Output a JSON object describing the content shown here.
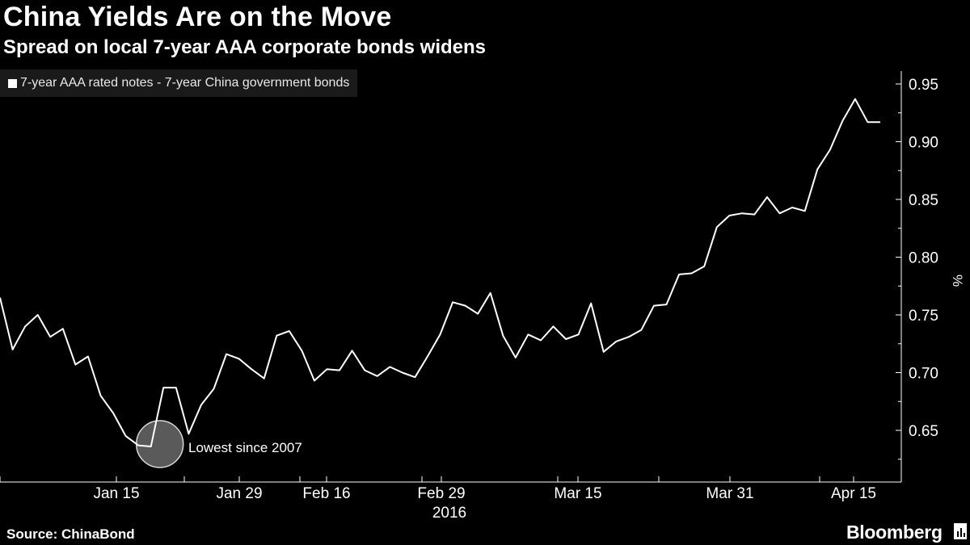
{
  "title": "China Yields Are on the Move",
  "subtitle": "Spread on local 7-year AAA corporate bonds widens",
  "source": "Source: ChinaBond",
  "brand": "Bloomberg",
  "chart_data": {
    "type": "line",
    "title": "China Yields Are on the Move",
    "subtitle": "Spread on local 7-year AAA corporate bonds widens",
    "ylabel": "%",
    "ylim": [
      0.62,
      0.96
    ],
    "yticks": [
      0.65,
      0.7,
      0.75,
      0.8,
      0.85,
      0.9,
      0.95
    ],
    "ytick_labels": [
      "0.65",
      "0.70",
      "0.75",
      "0.80",
      "0.85",
      "0.90",
      "0.95"
    ],
    "xlim": [
      "2016-01-04",
      "2016-04-20"
    ],
    "xticks": [
      {
        "date": "2016-01-15",
        "label": "Jan 15"
      },
      {
        "date": "2016-01-29",
        "label": "Jan 29"
      },
      {
        "date": "2016-02-16",
        "label": "Feb 16"
      },
      {
        "date": "2016-02-29",
        "label": "Feb 29"
      },
      {
        "date": "2016-03-15",
        "label": "Mar 15"
      },
      {
        "date": "2016-03-31",
        "label": "Mar 31"
      },
      {
        "date": "2016-04-15",
        "label": "Apr 15"
      }
    ],
    "year_label": "2016",
    "grid": false,
    "legend": "top-left",
    "series": [
      {
        "name": "7-year AAA rated notes - 7-year China government bonds",
        "color": "#ffffff",
        "points": [
          [
            "2016-01-04",
            0.765
          ],
          [
            "2016-01-05",
            0.72
          ],
          [
            "2016-01-06",
            0.74
          ],
          [
            "2016-01-07",
            0.75
          ],
          [
            "2016-01-08",
            0.731
          ],
          [
            "2016-01-09",
            0.738
          ],
          [
            "2016-01-10",
            0.707
          ],
          [
            "2016-01-11",
            0.714
          ],
          [
            "2016-01-12",
            0.68
          ],
          [
            "2016-01-13",
            0.665
          ],
          [
            "2016-01-14",
            0.645
          ],
          [
            "2016-01-15",
            0.637
          ],
          [
            "2016-01-16",
            0.636
          ],
          [
            "2016-01-17",
            0.687
          ],
          [
            "2016-01-18",
            0.687
          ],
          [
            "2016-01-19",
            0.647
          ],
          [
            "2016-01-20",
            0.672
          ],
          [
            "2016-01-21",
            0.686
          ],
          [
            "2016-01-22",
            0.716
          ],
          [
            "2016-01-23",
            0.712
          ],
          [
            "2016-01-24",
            0.703
          ],
          [
            "2016-01-25",
            0.695
          ],
          [
            "2016-01-26",
            0.732
          ],
          [
            "2016-01-27",
            0.736
          ],
          [
            "2016-01-28",
            0.719
          ],
          [
            "2016-01-29",
            0.693
          ],
          [
            "2016-02-01",
            0.703
          ],
          [
            "2016-02-04",
            0.702
          ],
          [
            "2016-02-07",
            0.719
          ],
          [
            "2016-02-10",
            0.702
          ],
          [
            "2016-02-13",
            0.697
          ],
          [
            "2016-02-16",
            0.705
          ],
          [
            "2016-02-19",
            0.7
          ],
          [
            "2016-02-22",
            0.696
          ],
          [
            "2016-02-25",
            0.714
          ],
          [
            "2016-02-29",
            0.733
          ],
          [
            "2016-03-02",
            0.761
          ],
          [
            "2016-03-04",
            0.758
          ],
          [
            "2016-03-05",
            0.751
          ],
          [
            "2016-03-06",
            0.769
          ],
          [
            "2016-03-07",
            0.732
          ],
          [
            "2016-03-08",
            0.713
          ],
          [
            "2016-03-09",
            0.733
          ],
          [
            "2016-03-10",
            0.728
          ],
          [
            "2016-03-11",
            0.74
          ],
          [
            "2016-03-12",
            0.729
          ],
          [
            "2016-03-13",
            0.733
          ],
          [
            "2016-03-14",
            0.76
          ],
          [
            "2016-03-15",
            0.718
          ],
          [
            "2016-03-16",
            0.727
          ],
          [
            "2016-03-17",
            0.731
          ],
          [
            "2016-03-18",
            0.737
          ],
          [
            "2016-03-19",
            0.758
          ],
          [
            "2016-03-20",
            0.759
          ],
          [
            "2016-03-21",
            0.785
          ],
          [
            "2016-03-22",
            0.786
          ],
          [
            "2016-03-23",
            0.792
          ],
          [
            "2016-03-24",
            0.826
          ],
          [
            "2016-03-25",
            0.836
          ],
          [
            "2016-03-26",
            0.838
          ],
          [
            "2016-03-27",
            0.837
          ],
          [
            "2016-03-28",
            0.852
          ],
          [
            "2016-03-29",
            0.838
          ],
          [
            "2016-03-30",
            0.843
          ],
          [
            "2016-03-31",
            0.84
          ],
          [
            "2016-04-01",
            0.876
          ],
          [
            "2016-04-02",
            0.893
          ],
          [
            "2016-04-03",
            0.918
          ],
          [
            "2016-04-04",
            0.937
          ],
          [
            "2016-04-05",
            0.917
          ],
          [
            "2016-04-06",
            0.917
          ]
        ]
      }
    ],
    "annotations": [
      {
        "text": "Lowest since 2007",
        "date": "2016-01-16",
        "value": 0.636,
        "marker": "circle"
      }
    ]
  }
}
